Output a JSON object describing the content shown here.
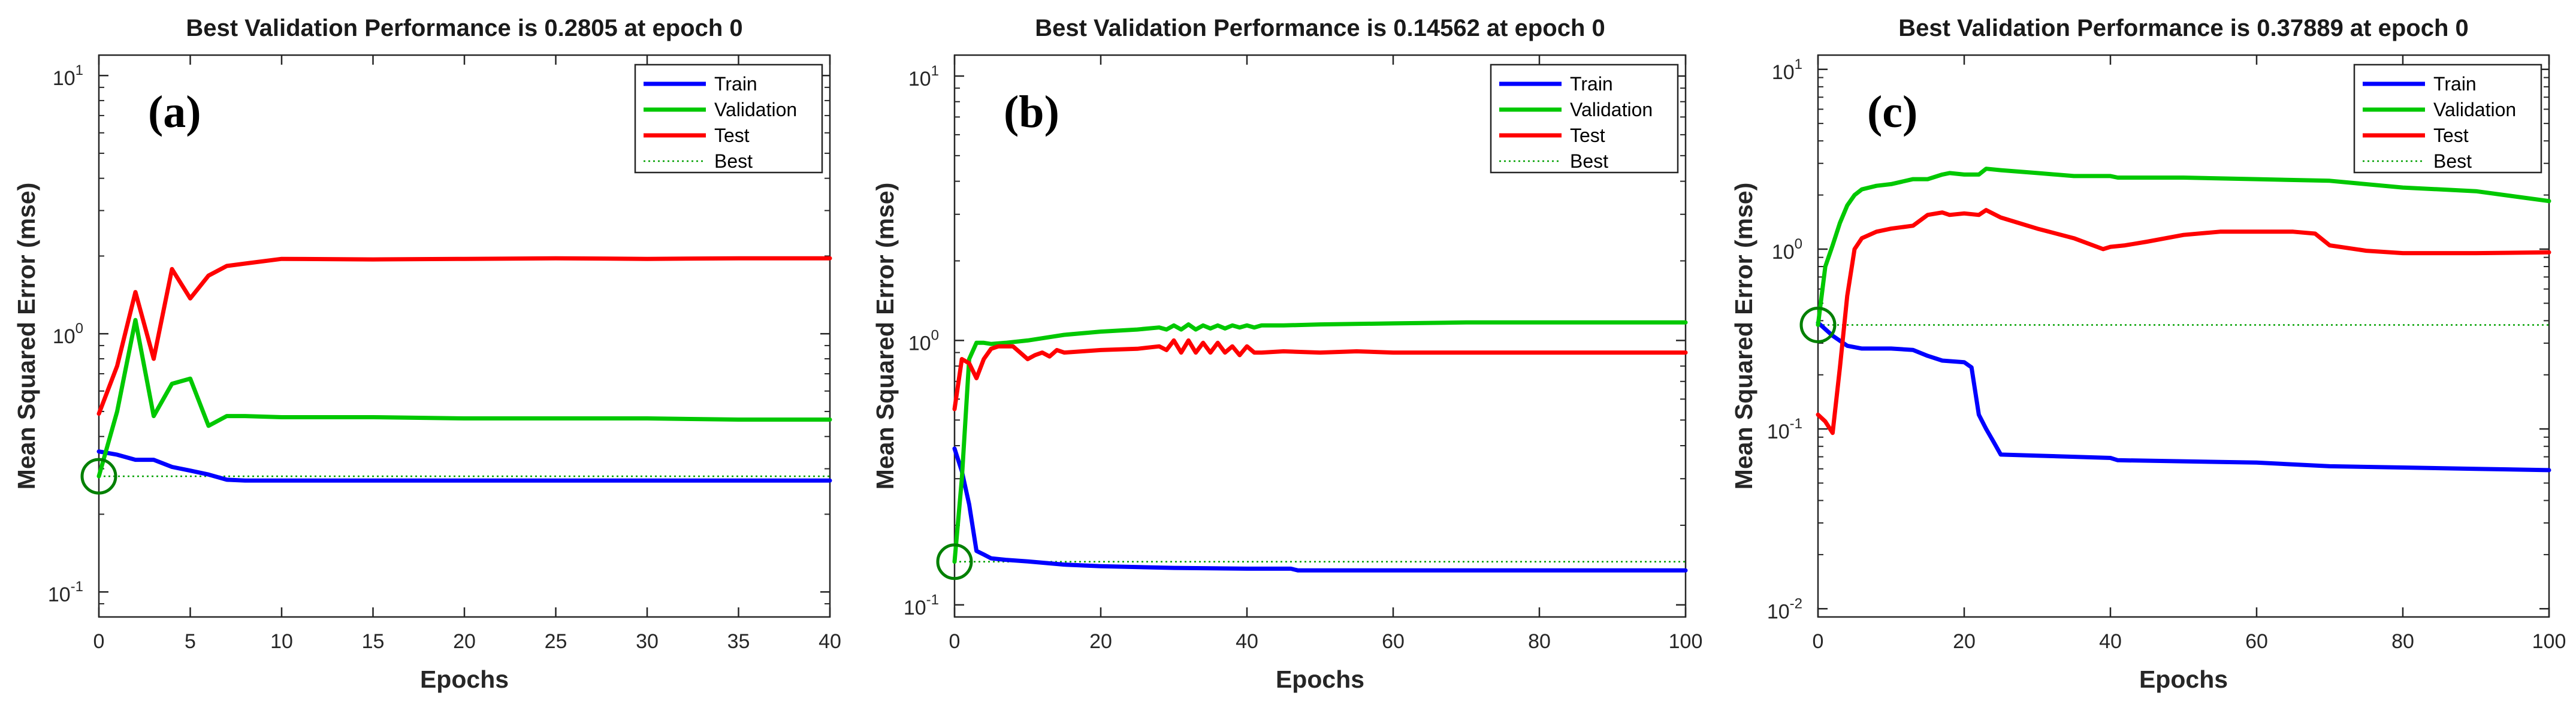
{
  "chart_data": [
    {
      "type": "line",
      "panel_letter": "(a)",
      "title": "Best Validation Performance is 0.2805 at epoch 0",
      "xlabel": "Epochs",
      "ylabel": "Mean Squared Error  (mse)",
      "yscale": "log",
      "xlim": [
        0,
        40
      ],
      "ylim": [
        0.08,
        12
      ],
      "xticks": [
        0,
        5,
        10,
        15,
        20,
        25,
        30,
        35,
        40
      ],
      "xtick_labels": [
        "0",
        "5",
        "10",
        "15",
        "20",
        "25",
        "30",
        "35",
        "40"
      ],
      "yticks": [
        {
          "value": 0.1,
          "base": "10",
          "exp": "-1"
        },
        {
          "value": 1,
          "base": "10",
          "exp": "0"
        },
        {
          "value": 10,
          "base": "10",
          "exp": "1"
        }
      ],
      "legend": [
        "Train",
        "Validation",
        "Test",
        "Best"
      ],
      "series": [
        {
          "name": "Train",
          "color": "#0000ff",
          "x": [
            0,
            1,
            2,
            3,
            4,
            5,
            6,
            7,
            8,
            10,
            15,
            20,
            25,
            30,
            35,
            40
          ],
          "y": [
            0.35,
            0.34,
            0.325,
            0.325,
            0.305,
            0.295,
            0.285,
            0.272,
            0.27,
            0.27,
            0.27,
            0.27,
            0.27,
            0.27,
            0.27,
            0.27
          ]
        },
        {
          "name": "Validation",
          "color": "#00c800",
          "x": [
            0,
            1,
            2,
            3,
            4,
            5,
            6,
            7,
            8,
            10,
            15,
            20,
            25,
            30,
            35,
            40
          ],
          "y": [
            0.2805,
            0.5,
            1.13,
            0.48,
            0.64,
            0.67,
            0.44,
            0.48,
            0.48,
            0.475,
            0.475,
            0.47,
            0.47,
            0.47,
            0.465,
            0.465
          ]
        },
        {
          "name": "Test",
          "color": "#ff0000",
          "x": [
            0,
            1,
            2,
            3,
            4,
            5,
            6,
            7,
            8,
            10,
            15,
            20,
            25,
            30,
            35,
            40
          ],
          "y": [
            0.49,
            0.75,
            1.45,
            0.8,
            1.78,
            1.37,
            1.68,
            1.83,
            1.87,
            1.95,
            1.94,
            1.95,
            1.96,
            1.95,
            1.96,
            1.96
          ]
        }
      ],
      "best": {
        "epoch": 0,
        "value": 0.2805
      }
    },
    {
      "type": "line",
      "panel_letter": "(b)",
      "title": "Best Validation Performance is 0.14562 at epoch 0",
      "xlabel": "Epochs",
      "ylabel": "Mean Squared Error  (mse)",
      "yscale": "log",
      "xlim": [
        0,
        100
      ],
      "ylim": [
        0.09,
        12
      ],
      "xticks": [
        0,
        20,
        40,
        60,
        80,
        100
      ],
      "xtick_labels": [
        "0",
        "20",
        "40",
        "60",
        "80",
        "100"
      ],
      "yticks": [
        {
          "value": 0.1,
          "base": "10",
          "exp": "-1"
        },
        {
          "value": 1,
          "base": "10",
          "exp": "0"
        },
        {
          "value": 10,
          "base": "10",
          "exp": "1"
        }
      ],
      "legend": [
        "Train",
        "Validation",
        "Test",
        "Best"
      ],
      "series": [
        {
          "name": "Train",
          "color": "#0000ff",
          "x": [
            0,
            1,
            2,
            3,
            4,
            5,
            7,
            10,
            15,
            20,
            30,
            40,
            46,
            47,
            60,
            80,
            100
          ],
          "y": [
            0.39,
            0.32,
            0.24,
            0.16,
            0.155,
            0.15,
            0.148,
            0.146,
            0.142,
            0.14,
            0.138,
            0.137,
            0.137,
            0.135,
            0.135,
            0.135,
            0.135
          ]
        },
        {
          "name": "Validation",
          "color": "#00c800",
          "x": [
            0,
            1,
            2,
            3,
            4,
            5,
            7,
            10,
            15,
            20,
            25,
            28,
            29,
            30,
            31,
            32,
            33,
            34,
            35,
            36,
            37,
            38,
            39,
            40,
            41,
            42,
            45,
            50,
            60,
            70,
            80,
            90,
            100
          ],
          "y": [
            0.14562,
            0.3,
            0.85,
            0.98,
            0.98,
            0.97,
            0.98,
            1.0,
            1.05,
            1.08,
            1.1,
            1.12,
            1.1,
            1.14,
            1.1,
            1.15,
            1.1,
            1.14,
            1.11,
            1.14,
            1.11,
            1.14,
            1.12,
            1.14,
            1.12,
            1.14,
            1.14,
            1.15,
            1.16,
            1.17,
            1.17,
            1.17,
            1.17
          ]
        },
        {
          "name": "Test",
          "color": "#ff0000",
          "x": [
            0,
            1,
            2,
            3,
            4,
            5,
            6,
            8,
            10,
            11,
            12,
            13,
            14,
            15,
            20,
            25,
            28,
            29,
            30,
            31,
            32,
            33,
            34,
            35,
            36,
            37,
            38,
            39,
            40,
            41,
            42,
            45,
            50,
            55,
            60,
            70,
            80,
            90,
            100
          ],
          "y": [
            0.55,
            0.85,
            0.82,
            0.72,
            0.85,
            0.93,
            0.95,
            0.95,
            0.85,
            0.88,
            0.9,
            0.87,
            0.92,
            0.9,
            0.92,
            0.93,
            0.95,
            0.92,
            1.0,
            0.9,
            1.0,
            0.9,
            0.98,
            0.9,
            0.98,
            0.9,
            0.95,
            0.88,
            0.95,
            0.9,
            0.9,
            0.91,
            0.9,
            0.91,
            0.9,
            0.9,
            0.9,
            0.9,
            0.9
          ]
        }
      ],
      "best": {
        "epoch": 0,
        "value": 0.14562
      }
    },
    {
      "type": "line",
      "panel_letter": "(c)",
      "title": "Best Validation Performance is 0.37889 at epoch 0",
      "xlabel": "Epochs",
      "ylabel": "Mean Squared Error  (mse)",
      "yscale": "log",
      "xlim": [
        0,
        100
      ],
      "ylim": [
        0.009,
        12
      ],
      "xticks": [
        0,
        20,
        40,
        60,
        80,
        100
      ],
      "xtick_labels": [
        "0",
        "20",
        "40",
        "60",
        "80",
        "100"
      ],
      "yticks": [
        {
          "value": 0.01,
          "base": "10",
          "exp": "-2"
        },
        {
          "value": 0.1,
          "base": "10",
          "exp": "-1"
        },
        {
          "value": 1,
          "base": "10",
          "exp": "0"
        },
        {
          "value": 10,
          "base": "10",
          "exp": "1"
        }
      ],
      "legend": [
        "Train",
        "Validation",
        "Test",
        "Best"
      ],
      "series": [
        {
          "name": "Train",
          "color": "#0000ff",
          "x": [
            0,
            2,
            4,
            6,
            10,
            13,
            15,
            17,
            20,
            21,
            22,
            23,
            24,
            25,
            30,
            40,
            41,
            60,
            70,
            80,
            90,
            100
          ],
          "y": [
            0.39,
            0.33,
            0.29,
            0.28,
            0.28,
            0.275,
            0.255,
            0.24,
            0.235,
            0.22,
            0.12,
            0.1,
            0.085,
            0.072,
            0.071,
            0.069,
            0.067,
            0.065,
            0.062,
            0.061,
            0.06,
            0.059
          ]
        },
        {
          "name": "Validation",
          "color": "#00c800",
          "x": [
            0,
            1,
            2,
            3,
            4,
            5,
            6,
            8,
            10,
            13,
            15,
            17,
            18,
            20,
            22,
            23,
            25,
            30,
            35,
            40,
            41,
            50,
            60,
            70,
            80,
            90,
            100
          ],
          "y": [
            0.37889,
            0.8,
            1.05,
            1.4,
            1.75,
            2.0,
            2.15,
            2.25,
            2.3,
            2.45,
            2.45,
            2.6,
            2.65,
            2.6,
            2.6,
            2.8,
            2.75,
            2.65,
            2.55,
            2.55,
            2.5,
            2.5,
            2.45,
            2.4,
            2.2,
            2.1,
            1.85
          ]
        },
        {
          "name": "Test",
          "color": "#ff0000",
          "x": [
            0,
            1,
            2,
            3,
            4,
            5,
            6,
            8,
            10,
            13,
            15,
            17,
            18,
            20,
            22,
            23,
            25,
            30,
            35,
            39,
            40,
            42,
            45,
            50,
            55,
            60,
            65,
            68,
            70,
            75,
            80,
            90,
            100
          ],
          "y": [
            0.12,
            0.11,
            0.095,
            0.22,
            0.55,
            1.0,
            1.15,
            1.25,
            1.3,
            1.35,
            1.55,
            1.6,
            1.55,
            1.58,
            1.55,
            1.65,
            1.5,
            1.3,
            1.15,
            1.0,
            1.03,
            1.05,
            1.1,
            1.2,
            1.25,
            1.25,
            1.25,
            1.22,
            1.05,
            0.98,
            0.95,
            0.95,
            0.96
          ]
        }
      ],
      "best": {
        "epoch": 0,
        "value": 0.37889
      }
    }
  ]
}
